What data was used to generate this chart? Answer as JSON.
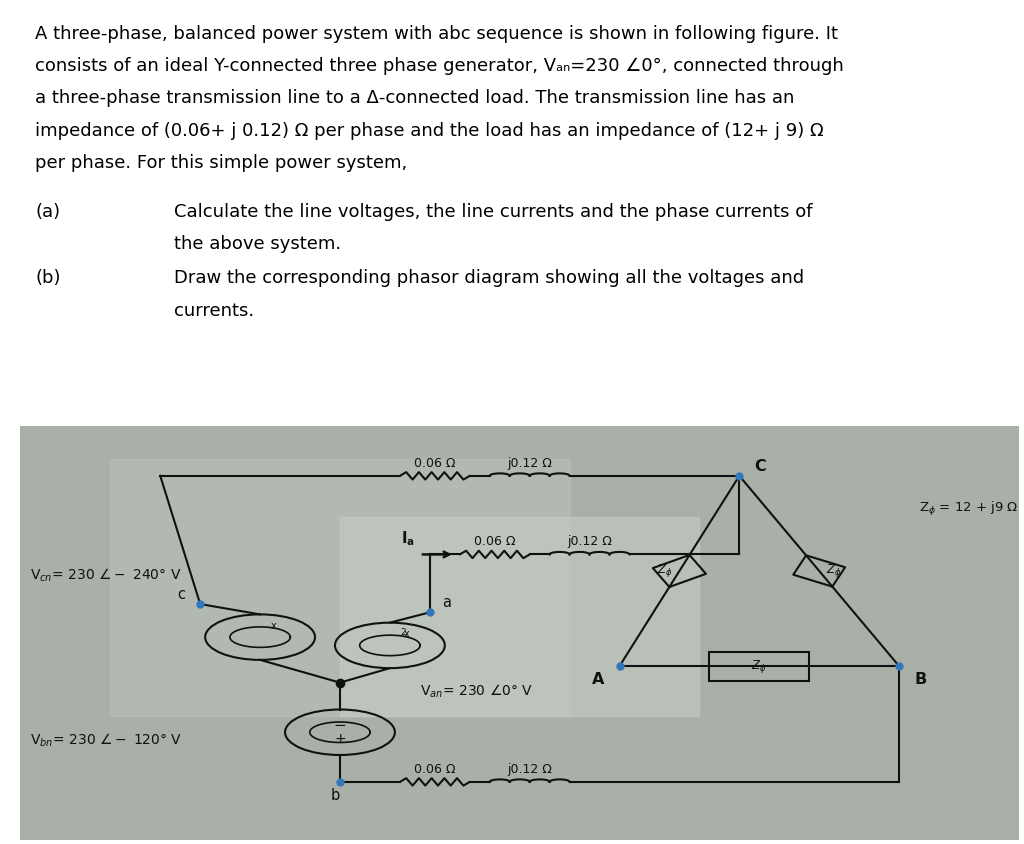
{
  "bg_color": "#ffffff",
  "circuit_bg": "#a8b0a8",
  "circuit_bg2": "#c0c8c0",
  "text_lines": [
    "A three-phase, balanced power system with abc sequence is shown in following figure. It",
    "consists of an ideal Y-connected three phase generator, Vₐₙ=230 ∠0°, connected through",
    "a three-phase transmission line to a Δ-connected load. The transmission line has an",
    "impedance of (0.06+ j 0.12) Ω per phase and the load has an impedance of (12+ j 9) Ω",
    "per phase. For this simple power system,"
  ],
  "part_a_label": "(a)",
  "part_a_text1": "Calculate the line voltages, the line currents and the phase currents of",
  "part_a_text2": "the above system.",
  "part_b_label": "(b)",
  "part_b_text1": "Draw the corresponding phasor diagram showing all the voltages and",
  "part_b_text2": "currents.",
  "lw": 1.5,
  "R_label": "0.06 Ω",
  "L_label": "j0.12 Ω",
  "Ia_label": "Iₐ",
  "Van_label": "Vₐₙ= 230 ∠0° V",
  "Vbn_label": "Vₙₙ= 230 ∠− 120° V",
  "Vcn_label": "Vᴄₙ= 230 ∠− 240° V",
  "Zphi_eq": "Zφ = 12 + j9 Ω",
  "Zphi": "Zφ",
  "node_a": "a",
  "node_b": "b",
  "node_c": "c",
  "node_A": "A",
  "node_B": "B",
  "node_C": "C",
  "dot_color": "#3377bb",
  "line_color": "#111111",
  "font_size_text": 13.0,
  "font_size_circuit": 9.0,
  "font_size_label": 10.5
}
